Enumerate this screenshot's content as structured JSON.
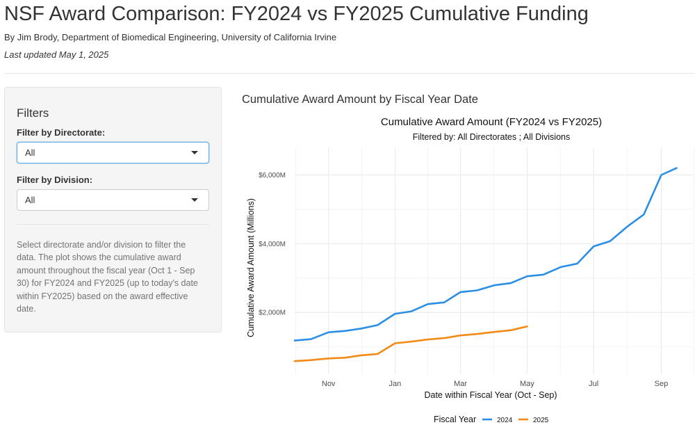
{
  "header": {
    "title": "NSF Award Comparison: FY2024 vs FY2025 Cumulative Funding",
    "byline": "By Jim Brody, Department of Biomedical Engineering, University of California Irvine",
    "updated": "Last updated May 1, 2025"
  },
  "sidebar": {
    "heading": "Filters",
    "directorate": {
      "label": "Filter by Directorate:",
      "value": "All"
    },
    "division": {
      "label": "Filter by Division:",
      "value": "All"
    },
    "help_text": "Select directorate and/or division to filter the data. The plot shows the cumulative award amount throughout the fiscal year (Oct 1 - Sep 30) for FY2024 and FY2025 (up to today's date within FY2025) based on the award effective date."
  },
  "main": {
    "panel_title": "Cumulative Award Amount by Fiscal Year Date"
  },
  "chart_data": {
    "type": "line",
    "title": "Cumulative Award Amount (FY2024 vs FY2025)",
    "subtitle": "Filtered by: All Directorates ; All Divisions",
    "xlabel": "Date within Fiscal Year (Oct - Sep)",
    "ylabel": "Cumulative Award Amount (Millions)",
    "x_range": [
      "Oct 1",
      "Sep 30"
    ],
    "ylim": [
      200,
      6800
    ],
    "x_ticks": [
      {
        "label": "Nov",
        "day": 31
      },
      {
        "label": "Jan",
        "day": 92
      },
      {
        "label": "Mar",
        "day": 152
      },
      {
        "label": "May",
        "day": 213
      },
      {
        "label": "Jul",
        "day": 274
      },
      {
        "label": "Sep",
        "day": 336
      }
    ],
    "y_ticks": [
      {
        "label": "$2,000M",
        "value": 2000
      },
      {
        "label": "$4,000M",
        "value": 4000
      },
      {
        "label": "$6,000M",
        "value": 6000
      }
    ],
    "grid": true,
    "legend": {
      "title": "Fiscal Year",
      "position": "bottom"
    },
    "series": [
      {
        "name": "2024",
        "color": "#2b8ee6",
        "points": [
          [
            0,
            1180
          ],
          [
            15,
            1220
          ],
          [
            31,
            1420
          ],
          [
            46,
            1460
          ],
          [
            61,
            1530
          ],
          [
            76,
            1630
          ],
          [
            92,
            1960
          ],
          [
            107,
            2030
          ],
          [
            122,
            2240
          ],
          [
            137,
            2290
          ],
          [
            152,
            2590
          ],
          [
            167,
            2640
          ],
          [
            183,
            2790
          ],
          [
            198,
            2850
          ],
          [
            213,
            3050
          ],
          [
            228,
            3100
          ],
          [
            244,
            3320
          ],
          [
            259,
            3420
          ],
          [
            274,
            3920
          ],
          [
            289,
            4070
          ],
          [
            305,
            4500
          ],
          [
            320,
            4850
          ],
          [
            336,
            6000
          ],
          [
            350,
            6200
          ]
        ]
      },
      {
        "name": "2025",
        "color": "#f28a16",
        "points": [
          [
            0,
            580
          ],
          [
            15,
            610
          ],
          [
            31,
            660
          ],
          [
            46,
            680
          ],
          [
            61,
            750
          ],
          [
            76,
            790
          ],
          [
            92,
            1100
          ],
          [
            107,
            1150
          ],
          [
            122,
            1210
          ],
          [
            137,
            1250
          ],
          [
            152,
            1330
          ],
          [
            167,
            1370
          ],
          [
            183,
            1430
          ],
          [
            198,
            1480
          ],
          [
            213,
            1590
          ]
        ]
      }
    ]
  }
}
